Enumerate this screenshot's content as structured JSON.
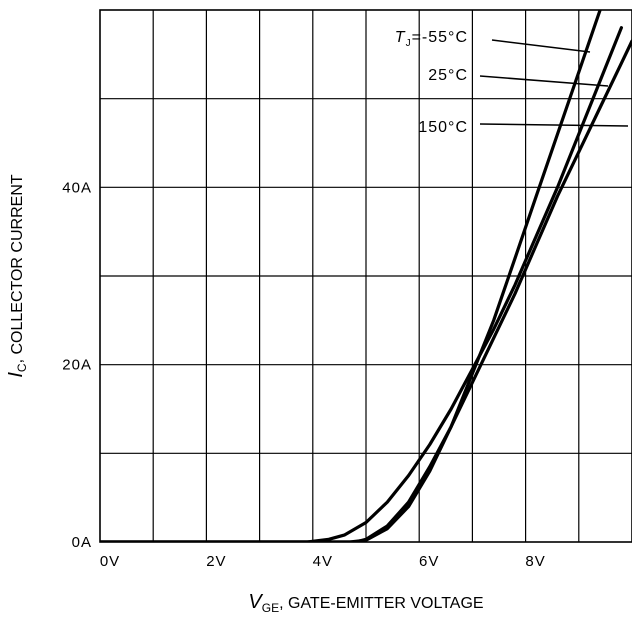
{
  "chart_data": {
    "type": "line",
    "xlabel_symbol": "V",
    "xlabel_subscript": "GE",
    "xlabel_text": ", GATE-EMITTER VOLTAGE",
    "ylabel_symbol": "I",
    "ylabel_subscript": "C",
    "ylabel_text": ", COLLECTOR CURRENT",
    "xlim": [
      0,
      10
    ],
    "ylim": [
      0,
      60
    ],
    "x_ticks": [
      {
        "value": 0,
        "label": "0V"
      },
      {
        "value": 2,
        "label": "2V"
      },
      {
        "value": 4,
        "label": "4V"
      },
      {
        "value": 6,
        "label": "6V"
      },
      {
        "value": 8,
        "label": "8V"
      }
    ],
    "y_ticks": [
      {
        "value": 0,
        "label": "0A"
      },
      {
        "value": 20,
        "label": "20A"
      },
      {
        "value": 40,
        "label": "40A"
      }
    ],
    "grid": true,
    "legend_parameter": "T",
    "legend_parameter_subscript": "J",
    "series": [
      {
        "name": "-55°C",
        "label_prefix": "=",
        "x": [
          0,
          4.7,
          5.0,
          5.4,
          5.8,
          6.2,
          6.6,
          7.0,
          7.4,
          7.8,
          8.2,
          8.6,
          9.0,
          9.4,
          9.7
        ],
        "y": [
          0,
          0,
          0.2,
          1.5,
          4,
          8,
          13,
          19,
          25,
          32,
          39,
          46,
          53,
          60,
          66
        ]
      },
      {
        "name": "25°C",
        "label_prefix": "",
        "x": [
          0,
          3.9,
          4.3,
          4.6,
          5.0,
          5.4,
          5.8,
          6.2,
          6.6,
          7.0,
          7.4,
          7.8,
          8.2,
          8.6,
          9.0,
          9.4,
          9.8
        ],
        "y": [
          0,
          0,
          0.3,
          0.8,
          2.2,
          4.5,
          7.5,
          11,
          15,
          19.5,
          24,
          29,
          34.5,
          40,
          46,
          52,
          58
        ]
      },
      {
        "name": "150°C",
        "label_prefix": "",
        "x": [
          0,
          4.8,
          5.0,
          5.4,
          5.8,
          6.2,
          6.6,
          7.0,
          7.4,
          7.8,
          8.2,
          8.6,
          9.0,
          9.4,
          9.8,
          10
        ],
        "y": [
          0,
          0,
          0.3,
          1.8,
          4.5,
          8.5,
          13,
          18,
          23,
          28,
          33.5,
          39,
          44,
          49,
          54,
          56.5
        ]
      }
    ]
  }
}
